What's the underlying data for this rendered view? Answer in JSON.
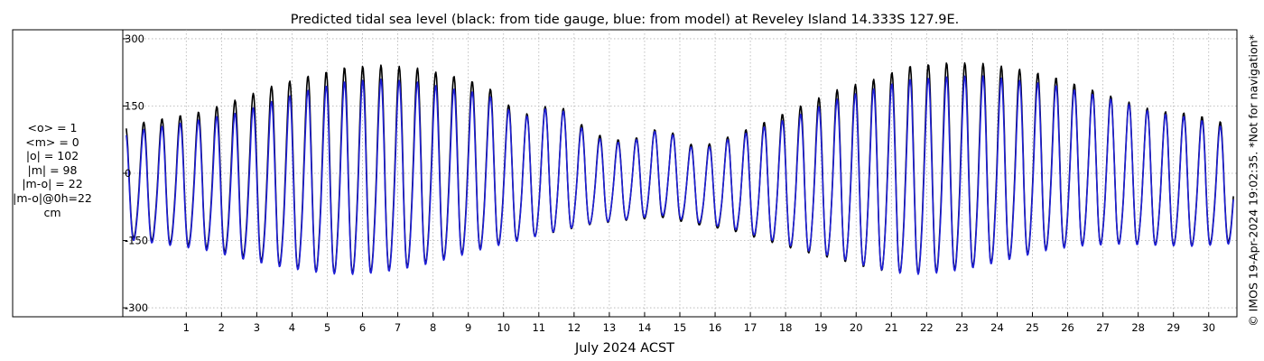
{
  "chart_data": {
    "type": "line",
    "title": "Predicted tidal sea level (black: from tide gauge, blue: from model) at Reveley Island 14.333S 127.9E.",
    "xlabel": "July 2024 ACST",
    "ylabel": "",
    "xlim": [
      -0.8,
      30.8
    ],
    "ylim": [
      -320,
      320
    ],
    "yticks": [
      300,
      150,
      0,
      -150,
      -300
    ],
    "ytick_labels": [
      "300",
      "150",
      "0",
      "-150",
      "-300"
    ],
    "xticks": [
      1,
      2,
      3,
      4,
      5,
      6,
      7,
      8,
      9,
      10,
      11,
      12,
      13,
      14,
      15,
      16,
      17,
      18,
      19,
      20,
      21,
      22,
      23,
      24,
      25,
      26,
      27,
      28,
      29,
      30
    ],
    "xtick_labels": [
      "1",
      "2",
      "3",
      "4",
      "5",
      "6",
      "7",
      "8",
      "9",
      "10",
      "11",
      "12",
      "13",
      "14",
      "15",
      "16",
      "17",
      "18",
      "19",
      "20",
      "21",
      "22",
      "23",
      "24",
      "25",
      "26",
      "27",
      "28",
      "29",
      "30"
    ],
    "grid": true,
    "legend": "none",
    "series": [
      {
        "color": "#000000",
        "model": "semidiurnal tide with spring-neap modulation",
        "x_start": -0.7,
        "x_end": 30.7,
        "step": 0.02,
        "upper_envelope": [
          [
            -0.7,
            95
          ],
          [
            1.5,
            125
          ],
          [
            2.5,
            150
          ],
          [
            3.5,
            178
          ],
          [
            4.5,
            198
          ],
          [
            5.5,
            215
          ],
          [
            6.5,
            220
          ],
          [
            7.5,
            215
          ],
          [
            8.5,
            200
          ],
          [
            9.5,
            180
          ],
          [
            10.5,
            115
          ],
          [
            11.5,
            145
          ],
          [
            12.5,
            80
          ],
          [
            13.5,
            62
          ],
          [
            14.5,
            95
          ],
          [
            15.5,
            48
          ],
          [
            16.5,
            75
          ],
          [
            17.5,
            105
          ],
          [
            18.5,
            138
          ],
          [
            19.5,
            170
          ],
          [
            20.5,
            190
          ],
          [
            21.5,
            218
          ],
          [
            22.5,
            225
          ],
          [
            23.5,
            225
          ],
          [
            24.5,
            215
          ],
          [
            25.5,
            200
          ],
          [
            26.5,
            175
          ],
          [
            27.5,
            150
          ],
          [
            28.5,
            125
          ],
          [
            29.5,
            120
          ],
          [
            30.7,
            95
          ]
        ],
        "lower_envelope": [
          [
            -0.7,
            -150
          ],
          [
            1.5,
            -175
          ],
          [
            2.5,
            -195
          ],
          [
            3.5,
            -215
          ],
          [
            4.5,
            -230
          ],
          [
            5.5,
            -238
          ],
          [
            6.5,
            -232
          ],
          [
            7.5,
            -220
          ],
          [
            8.5,
            -200
          ],
          [
            9.5,
            -175
          ],
          [
            10.5,
            -155
          ],
          [
            11.5,
            -140
          ],
          [
            12.5,
            -120
          ],
          [
            13.5,
            -110
          ],
          [
            14.5,
            -105
          ],
          [
            15.5,
            -120
          ],
          [
            16.5,
            -135
          ],
          [
            17.5,
            -160
          ],
          [
            18.5,
            -185
          ],
          [
            19.5,
            -205
          ],
          [
            20.5,
            -228
          ],
          [
            21.5,
            -238
          ],
          [
            22.5,
            -232
          ],
          [
            23.5,
            -220
          ],
          [
            24.5,
            -200
          ],
          [
            25.5,
            -180
          ],
          [
            26.5,
            -170
          ],
          [
            27.5,
            -165
          ],
          [
            28.5,
            -168
          ],
          [
            29.5,
            -170
          ],
          [
            30.7,
            -160
          ]
        ]
      },
      {
        "color": "#1f1fd6",
        "model": "semidiurnal tide with spring-neap modulation",
        "x_start": -0.7,
        "x_end": 30.7,
        "step": 0.02,
        "upper_envelope": [
          [
            -0.7,
            80
          ],
          [
            1.5,
            108
          ],
          [
            2.5,
            120
          ],
          [
            3.5,
            145
          ],
          [
            4.5,
            168
          ],
          [
            5.5,
            185
          ],
          [
            6.5,
            190
          ],
          [
            7.5,
            185
          ],
          [
            8.5,
            172
          ],
          [
            9.5,
            162
          ],
          [
            10.5,
            110
          ],
          [
            11.5,
            140
          ],
          [
            12.5,
            72
          ],
          [
            13.5,
            58
          ],
          [
            14.5,
            92
          ],
          [
            15.5,
            42
          ],
          [
            16.5,
            70
          ],
          [
            17.5,
            95
          ],
          [
            18.5,
            120
          ],
          [
            19.5,
            150
          ],
          [
            20.5,
            170
          ],
          [
            21.5,
            190
          ],
          [
            22.5,
            195
          ],
          [
            23.5,
            198
          ],
          [
            24.5,
            190
          ],
          [
            25.5,
            182
          ],
          [
            26.5,
            165
          ],
          [
            27.5,
            145
          ],
          [
            28.5,
            120
          ],
          [
            29.5,
            112
          ],
          [
            30.7,
            85
          ]
        ],
        "lower_envelope": [
          [
            -0.7,
            -155
          ],
          [
            1.5,
            -180
          ],
          [
            2.5,
            -200
          ],
          [
            3.5,
            -218
          ],
          [
            4.5,
            -232
          ],
          [
            5.5,
            -240
          ],
          [
            6.5,
            -235
          ],
          [
            7.5,
            -222
          ],
          [
            8.5,
            -202
          ],
          [
            9.5,
            -178
          ],
          [
            10.5,
            -158
          ],
          [
            11.5,
            -138
          ],
          [
            12.5,
            -118
          ],
          [
            13.5,
            -108
          ],
          [
            14.5,
            -100
          ],
          [
            15.5,
            -115
          ],
          [
            16.5,
            -130
          ],
          [
            17.5,
            -155
          ],
          [
            18.5,
            -180
          ],
          [
            19.5,
            -200
          ],
          [
            20.5,
            -225
          ],
          [
            21.5,
            -240
          ],
          [
            22.5,
            -235
          ],
          [
            23.5,
            -222
          ],
          [
            24.5,
            -202
          ],
          [
            25.5,
            -182
          ],
          [
            26.5,
            -172
          ],
          [
            27.5,
            -168
          ],
          [
            28.5,
            -170
          ],
          [
            29.5,
            -172
          ],
          [
            30.7,
            -165
          ]
        ]
      }
    ]
  },
  "stats": {
    "line1": "<o> = 1",
    "line2": "<m> = 0",
    "line3": "|o| = 102",
    "line4": "|m| = 98",
    "line5": "|m-o| = 22",
    "line6": "|m-o|@0h=22",
    "line7": "cm"
  },
  "side_note": "© IMOS 19-Apr-2024 19:02:35. *Not for navigation*"
}
